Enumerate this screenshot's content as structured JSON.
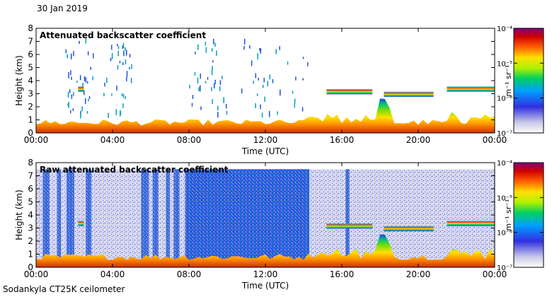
{
  "figure": {
    "date": "30 Jan 2019",
    "footer": "Sodankyla CT25K ceilometer"
  },
  "chart_data": [
    {
      "type": "heatmap",
      "title": "Attenuated backscatter coefficient",
      "xlabel": "Time (UTC)",
      "ylabel": "Height (km)",
      "x_ticks": [
        "00:00",
        "04:00",
        "08:00",
        "12:00",
        "16:00",
        "20:00",
        "00:00"
      ],
      "y_ticks": [
        0,
        1,
        2,
        3,
        4,
        5,
        6,
        7,
        8
      ],
      "xlim_hours": [
        0,
        24
      ],
      "ylim_km": [
        0,
        8
      ],
      "colorbar": {
        "label": "m⁻¹ sr⁻¹",
        "scale": "log",
        "ticks": [
          "10⁻⁷",
          "10⁻⁶",
          "10⁻⁵",
          "10⁻⁴"
        ],
        "range": [
          1e-07,
          0.0001
        ]
      },
      "features": [
        {
          "name": "surface layer",
          "t_start_h": 0,
          "t_end_h": 24,
          "top_km": 0.8,
          "value": "high"
        },
        {
          "name": "elevated cloud layer",
          "t_start_h": 2.2,
          "t_end_h": 2.5,
          "height_km": 3.3
        },
        {
          "name": "elevated cloud layer",
          "t_start_h": 15.2,
          "t_end_h": 17.6,
          "height_km": 3.1
        },
        {
          "name": "elevated cloud layer",
          "t_start_h": 18.2,
          "t_end_h": 20.8,
          "height_km": 2.9
        },
        {
          "name": "elevated cloud layer",
          "t_start_h": 21.5,
          "t_end_h": 24,
          "height_km": 3.3
        }
      ]
    },
    {
      "type": "heatmap",
      "title": "Raw attenuated backscatter coefficient",
      "xlabel": "Time (UTC)",
      "ylabel": "Height (km)",
      "x_ticks": [
        "00:00",
        "04:00",
        "08:00",
        "12:00",
        "16:00",
        "20:00",
        "00:00"
      ],
      "y_ticks": [
        0,
        1,
        2,
        3,
        4,
        5,
        6,
        7,
        8
      ],
      "xlim_hours": [
        0,
        24
      ],
      "ylim_km": [
        0,
        8
      ],
      "colorbar": {
        "label": "m⁻¹ sr⁻¹",
        "scale": "log",
        "ticks": [
          "10⁻⁷",
          "10⁻⁶",
          "10⁻⁵",
          "10⁻⁴"
        ],
        "range": [
          1e-07,
          0.0001
        ]
      },
      "features": [
        {
          "name": "surface layer",
          "t_start_h": 0,
          "t_end_h": 24,
          "top_km": 0.8,
          "value": "high"
        },
        {
          "name": "noise background",
          "t_start_h": 0,
          "t_end_h": 24,
          "top_km": 7.5,
          "value": "low"
        },
        {
          "name": "noisy period",
          "t_start_h": 7.8,
          "t_end_h": 14.3,
          "top_km": 7.5,
          "value": "medium"
        }
      ]
    }
  ]
}
